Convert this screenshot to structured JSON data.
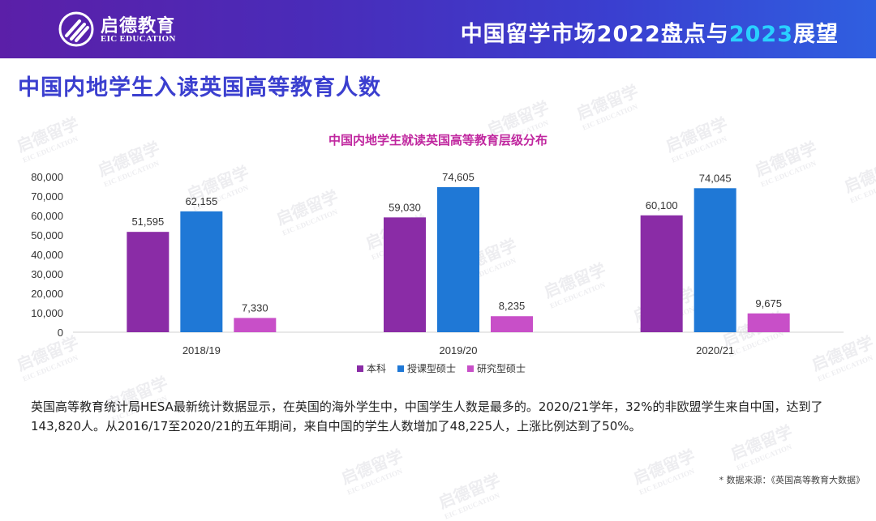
{
  "header": {
    "brand_cn": "启德教育",
    "brand_en": "EIC EDUCATION",
    "title_prefix": "中国留学市场2022盘点与",
    "title_highlight": "2023",
    "title_suffix": "展望"
  },
  "page_title": "中国内地学生入读英国高等教育人数",
  "colors": {
    "header_start": "#5b1fa8",
    "header_end": "#2f5fe0",
    "accent": "#3b3fcf",
    "chart_title": "#c0279f",
    "highlight": "#29d0ff"
  },
  "chart_data": {
    "type": "bar",
    "title": "中国内地学生就读英国高等教育层级分布",
    "categories": [
      "2018/19",
      "2019/20",
      "2020/21"
    ],
    "series": [
      {
        "name": "本科",
        "color": "#8a2ca6",
        "values": [
          51595,
          59030,
          60100
        ],
        "labels": [
          "51,595",
          "59,030",
          "60,100"
        ]
      },
      {
        "name": "授课型硕士",
        "color": "#1f78d6",
        "values": [
          62155,
          74605,
          74045
        ],
        "labels": [
          "62,155",
          "74,605",
          "74,045"
        ]
      },
      {
        "name": "研究型硕士",
        "color": "#c84fc8",
        "values": [
          7330,
          8235,
          9675
        ],
        "labels": [
          "7,330",
          "8,235",
          "9,675"
        ]
      }
    ],
    "ylim": [
      0,
      80000
    ],
    "yticks": [
      "0",
      "10,000",
      "20,000",
      "30,000",
      "40,000",
      "50,000",
      "60,000",
      "70,000",
      "80,000"
    ],
    "grid": false,
    "legend": "bottom"
  },
  "body_text": "英国高等教育统计局HESA最新统计数据显示，在英国的海外学生中，中国学生人数是最多的。2020/21学年，32%的非欧盟学生来自中国，达到了143,820人。从2016/17至2020/21的五年期间，来自中国的学生人数增加了48,225人，上涨比例达到了50%。",
  "source": "* 数据来源：《英国高等教育大数据》"
}
